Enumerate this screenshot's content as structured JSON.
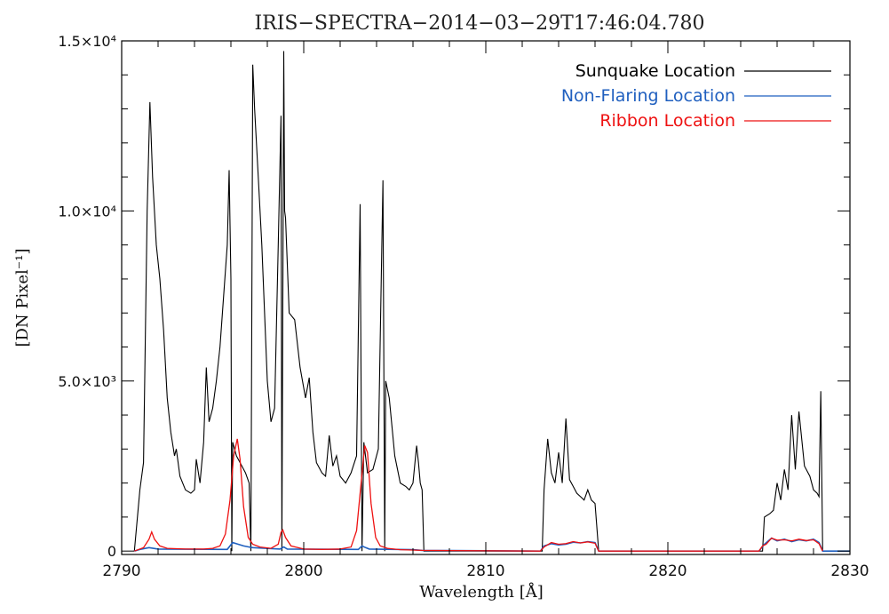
{
  "chart_data": {
    "type": "line",
    "title": "IRIS−SPECTRA−2014−03−29T17:46:04.780",
    "xlabel": "Wavelength [Å]",
    "ylabel": "[DN Pixel⁻¹]",
    "xlim": [
      2790,
      2830
    ],
    "ylim": [
      -100,
      15000
    ],
    "xticks": [
      2790,
      2800,
      2810,
      2820,
      2830
    ],
    "xtick_labels": [
      "2790",
      "2800",
      "2810",
      "2820",
      "2830"
    ],
    "yticks": [
      0,
      5000,
      10000,
      15000
    ],
    "ytick_labels": [
      "0",
      "5.0×10³",
      "1.0×10⁴",
      "1.5×10⁴"
    ],
    "legend_position": "top-right",
    "grid": false,
    "series": [
      {
        "name": "Sunquake Location",
        "color": "#000000",
        "x": [
          2790.7,
          2791.0,
          2791.2,
          2791.4,
          2791.55,
          2791.7,
          2791.9,
          2792.1,
          2792.3,
          2792.5,
          2792.7,
          2792.9,
          2793.0,
          2793.2,
          2793.5,
          2793.8,
          2794.0,
          2794.1,
          2794.3,
          2794.5,
          2794.65,
          2794.8,
          2795.0,
          2795.2,
          2795.4,
          2795.6,
          2795.8,
          2795.9,
          2796.0,
          2796.05,
          2796.1,
          2796.3,
          2796.5,
          2796.8,
          2797.0,
          2797.1,
          2797.2,
          2797.3,
          2797.5,
          2797.7,
          2798.0,
          2798.2,
          2798.4,
          2798.6,
          2798.75,
          2798.8,
          2798.9,
          2798.95,
          2799.0,
          2799.2,
          2799.5,
          2799.8,
          2800.1,
          2800.3,
          2800.5,
          2800.7,
          2801.0,
          2801.2,
          2801.4,
          2801.6,
          2801.8,
          2802.0,
          2802.3,
          2802.6,
          2802.9,
          2803.1,
          2803.2,
          2803.3,
          2803.5,
          2803.8,
          2804.1,
          2804.35,
          2804.45,
          2804.5,
          2804.7,
          2805.0,
          2805.3,
          2805.6,
          2805.8,
          2806.0,
          2806.2,
          2806.3,
          2806.4,
          2806.5,
          2806.6,
          2813.1,
          2813.2,
          2813.4,
          2813.6,
          2813.8,
          2814.0,
          2814.2,
          2814.4,
          2814.6,
          2814.8,
          2815.0,
          2815.2,
          2815.4,
          2815.6,
          2815.8,
          2816.0,
          2816.2,
          2825.2,
          2825.3,
          2825.6,
          2825.8,
          2826.0,
          2826.2,
          2826.4,
          2826.6,
          2826.8,
          2827.0,
          2827.2,
          2827.5,
          2827.8,
          2828.0,
          2828.2,
          2828.3,
          2828.4,
          2828.5
        ],
        "y": [
          0,
          1800,
          2600,
          10000,
          13200,
          11000,
          9000,
          8000,
          6500,
          4500,
          3500,
          2800,
          3000,
          2200,
          1800,
          1700,
          1800,
          2700,
          2000,
          3200,
          5400,
          3800,
          4200,
          5000,
          6000,
          7500,
          9000,
          11200,
          8000,
          0,
          3200,
          2800,
          2600,
          2300,
          2000,
          0,
          14300,
          13000,
          11000,
          9000,
          5000,
          3800,
          4200,
          9000,
          12800,
          0,
          14700,
          10000,
          9800,
          7000,
          6800,
          5400,
          4500,
          5100,
          3500,
          2600,
          2300,
          2200,
          3400,
          2500,
          2800,
          2200,
          2000,
          2300,
          2800,
          10200,
          0,
          3200,
          2300,
          2400,
          3000,
          10900,
          0,
          5000,
          4500,
          2800,
          2000,
          1900,
          1800,
          2000,
          3100,
          2600,
          2000,
          1800,
          0,
          0,
          1800,
          3300,
          2300,
          2000,
          2900,
          2000,
          3900,
          2100,
          1900,
          1700,
          1600,
          1500,
          1800,
          1500,
          1400,
          0,
          0,
          1000,
          1100,
          1200,
          2000,
          1500,
          2400,
          1800,
          4000,
          2400,
          4100,
          2500,
          2200,
          1800,
          1700,
          1600,
          4700,
          0
        ],
        "lw": 1.1
      },
      {
        "name": "Non-Flaring Location",
        "color": "#1f5fbf",
        "x": [
          2790.7,
          2791.0,
          2791.5,
          2792.0,
          2795.8,
          2796.1,
          2796.4,
          2796.7,
          2797.0,
          2797.2,
          2798.7,
          2798.9,
          2799.1,
          2803.0,
          2803.2,
          2803.4,
          2803.6,
          2806.0,
          2806.5,
          2813.0,
          2813.2,
          2813.6,
          2814.0,
          2814.4,
          2814.8,
          2815.2,
          2815.6,
          2816.0,
          2816.2,
          2825.0,
          2825.3,
          2825.7,
          2826.0,
          2826.4,
          2826.8,
          2827.2,
          2827.6,
          2828.0,
          2828.3,
          2828.5,
          2830.0
        ],
        "y": [
          0,
          50,
          100,
          60,
          50,
          250,
          200,
          150,
          120,
          100,
          60,
          120,
          60,
          50,
          150,
          100,
          60,
          40,
          20,
          0,
          150,
          220,
          180,
          200,
          260,
          240,
          280,
          250,
          0,
          0,
          200,
          380,
          300,
          350,
          280,
          330,
          300,
          350,
          250,
          0,
          0
        ],
        "lw": 1.6
      },
      {
        "name": "Ribbon Location",
        "color": "#ee1111",
        "x": [
          2790.7,
          2791.2,
          2791.5,
          2791.65,
          2791.8,
          2792.1,
          2792.5,
          2793.5,
          2794.5,
          2795.0,
          2795.4,
          2795.7,
          2795.95,
          2796.15,
          2796.35,
          2796.5,
          2796.7,
          2796.95,
          2797.2,
          2797.6,
          2798.2,
          2798.6,
          2798.75,
          2798.85,
          2799.0,
          2799.3,
          2800.0,
          2801.0,
          2802.0,
          2802.6,
          2802.9,
          2803.15,
          2803.35,
          2803.5,
          2803.7,
          2803.95,
          2804.2,
          2804.6,
          2805.3,
          2806.5,
          2813.0,
          2813.2,
          2813.6,
          2814.0,
          2814.4,
          2814.8,
          2815.2,
          2815.6,
          2816.0,
          2816.2,
          2825.0,
          2825.2,
          2825.4,
          2825.7,
          2826.0,
          2826.4,
          2826.8,
          2827.2,
          2827.6,
          2828.0,
          2828.3,
          2828.5
        ],
        "y": [
          0,
          100,
          350,
          560,
          350,
          150,
          80,
          60,
          60,
          80,
          150,
          500,
          1500,
          2800,
          3300,
          2700,
          1300,
          400,
          200,
          120,
          80,
          200,
          550,
          620,
          400,
          150,
          60,
          50,
          60,
          120,
          600,
          2000,
          3100,
          2900,
          1400,
          400,
          150,
          80,
          40,
          20,
          0,
          120,
          250,
          200,
          220,
          280,
          240,
          270,
          230,
          0,
          0,
          150,
          200,
          380,
          320,
          330,
          300,
          350,
          310,
          330,
          220,
          0
        ],
        "lw": 1.3
      }
    ]
  }
}
